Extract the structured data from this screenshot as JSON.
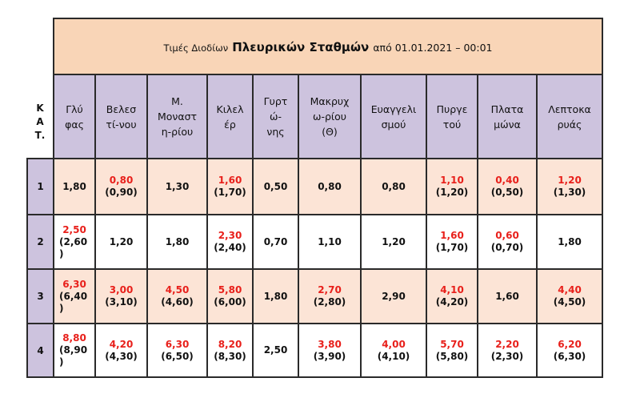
{
  "title": {
    "prefix": "Τιμές Διοδίων",
    "main": "Πλευρικών Σταθμών",
    "suffix": "από 01.01.2021 – 00:01"
  },
  "category_header": "Κ\nΑ\nΤ.",
  "stations": [
    "Γλύ\nφας",
    "Βελεσ\nτί-νου",
    "Μ.\nΜοναστ\nη-ρίου",
    "Κιλελ\nέρ",
    "Γυρτ\nώ-\nνης",
    "Μακρυχ\nω-ρίου\n(Θ)",
    "Ευαγγελι\nσμού",
    "Πυργε\nτού",
    "Πλατα\nμώνα",
    "Λεπτοκα\nρυάς"
  ],
  "rows": [
    {
      "category": "1",
      "cells": [
        {
          "price": "1,80"
        },
        {
          "price": "0,80",
          "previous": "(0,90)"
        },
        {
          "price": "1,30"
        },
        {
          "price": "1,60",
          "previous": "(1,70)"
        },
        {
          "price": "0,50"
        },
        {
          "price": "0,80"
        },
        {
          "price": "0,80"
        },
        {
          "price": "1,10",
          "previous": "(1,20)"
        },
        {
          "price": "0,40",
          "previous": "(0,50)"
        },
        {
          "price": "1,20",
          "previous": "(1,30)"
        }
      ]
    },
    {
      "category": "2",
      "cells": [
        {
          "price": "2,50",
          "previous": "(2,60)"
        },
        {
          "price": "1,20"
        },
        {
          "price": "1,80"
        },
        {
          "price": "2,30",
          "previous": "(2,40)"
        },
        {
          "price": "0,70"
        },
        {
          "price": "1,10"
        },
        {
          "price": "1,20"
        },
        {
          "price": "1,60",
          "previous": "(1,70)"
        },
        {
          "price": "0,60",
          "previous": "(0,70)"
        },
        {
          "price": "1,80"
        }
      ]
    },
    {
      "category": "3",
      "cells": [
        {
          "price": "6,30",
          "previous": "(6,40)"
        },
        {
          "price": "3,00",
          "previous": "(3,10)"
        },
        {
          "price": "4,50",
          "previous": "(4,60)"
        },
        {
          "price": "5,80",
          "previous": "(6,00)"
        },
        {
          "price": "1,80"
        },
        {
          "price": "2,70",
          "previous": "(2,80)"
        },
        {
          "price": "2,90"
        },
        {
          "price": "4,10",
          "previous": "(4,20)"
        },
        {
          "price": "1,60"
        },
        {
          "price": "4,40",
          "previous": "(4,50)"
        }
      ]
    },
    {
      "category": "4",
      "cells": [
        {
          "price": "8,80",
          "previous": "(8,90)"
        },
        {
          "price": "4,20",
          "previous": "(4,30)"
        },
        {
          "price": "6,30",
          "previous": "(6,50)"
        },
        {
          "price": "8,20",
          "previous": "(8,30)"
        },
        {
          "price": "2,50"
        },
        {
          "price": "3,80",
          "previous": "(3,90)"
        },
        {
          "price": "4,00",
          "previous": "(4,10)"
        },
        {
          "price": "5,70",
          "previous": "(5,80)"
        },
        {
          "price": "2,20",
          "previous": "(2,30)"
        },
        {
          "price": "6,20",
          "previous": "(6,30)"
        }
      ]
    }
  ],
  "colors": {
    "title_background": "#F9D5B7",
    "header_background": "#CDC3DE",
    "tinted_row_background": "#FCE4D6",
    "changed_price_text": "#E8201B",
    "text": "#111111",
    "grid": "#2A2A2A"
  }
}
